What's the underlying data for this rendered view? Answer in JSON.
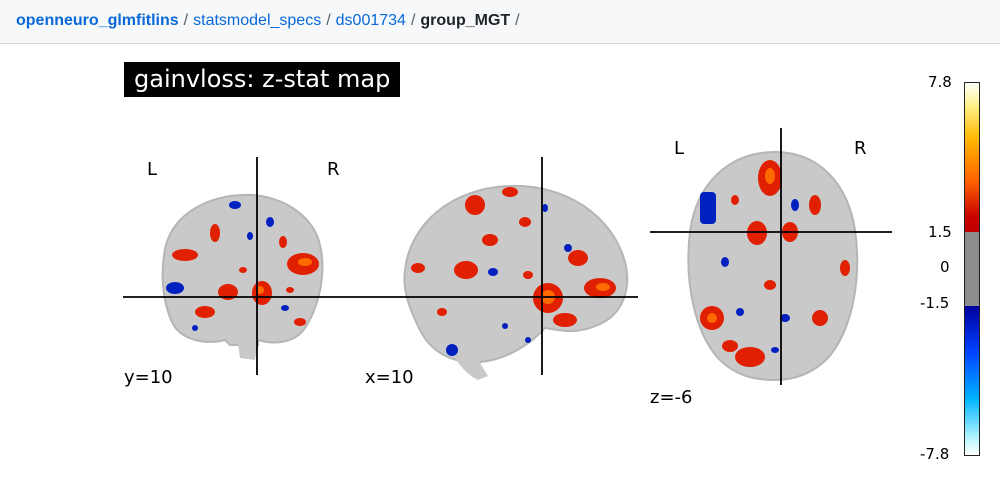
{
  "breadcrumb": {
    "items": [
      "openneuro_glmfitlins",
      "statsmodel_specs",
      "ds001734"
    ],
    "current": "group_MGT",
    "separator": "/"
  },
  "figure": {
    "title": "gainvloss: z-stat map",
    "coronal": {
      "left_label": "L",
      "right_label": "R",
      "cut_label": "y=10"
    },
    "sagittal": {
      "cut_label": "x=10"
    },
    "axial": {
      "left_label": "L",
      "right_label": "R",
      "cut_label": "z=-6"
    },
    "colorbar": {
      "max_label": "7.8",
      "threshold_pos_label": "1.5",
      "zero_label": "0",
      "threshold_neg_label": "-1.5",
      "min_label": "-7.8",
      "range": [
        -7.8,
        7.8
      ],
      "threshold": 1.5,
      "colormap": "cold_hot"
    }
  },
  "colors": {
    "link": "#0969da",
    "hot": "#e02000",
    "hot_light": "#ff6a00",
    "cold": "#0020c0",
    "brain_gray": "#c9c9c9",
    "crosshair": "#000000"
  }
}
